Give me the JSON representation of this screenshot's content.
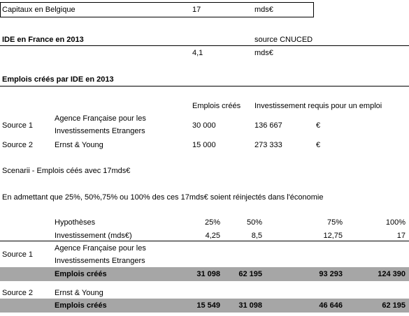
{
  "capitaux": {
    "label": "Capitaux en Belgique",
    "value": "17",
    "unit": "mds€"
  },
  "ide_france": {
    "title": "IDE en France en 2013",
    "source": "source CNUCED",
    "value": "4,1",
    "unit": "mds€"
  },
  "emplois_ide": {
    "title": "Emplois créés par IDE en 2013",
    "col_emplois": "Emplois créés",
    "col_invest": "Investissement requis pour un emploi",
    "rows": [
      {
        "source": "Source 1",
        "org_line1": "Agence Française pour les",
        "org_line2": "Investissements Etrangers",
        "emplois": "30 000",
        "invest": "136 667",
        "currency": "€"
      },
      {
        "source": "Source 2",
        "org_line1": "Ernst & Young",
        "org_line2": "",
        "emplois": "15 000",
        "invest": "273 333",
        "currency": "€"
      }
    ]
  },
  "scenarii": {
    "title": "Scenarii - Emplois céés avec 17mds€",
    "note": "En admettant que 25%, 50%,75% ou 100% des ces 17mds€ soient réinjectés dans l'économie",
    "hyp_label": "Hypothèses",
    "hyp_values": [
      "25%",
      "50%",
      "75%",
      "100%"
    ],
    "inv_label": "Investissement (mds€)",
    "inv_values": [
      "4,25",
      "8,5",
      "12,75",
      "17"
    ],
    "src1": {
      "source": "Source 1",
      "org_line1": "Agence Française pour les",
      "org_line2": "Investissements Etrangers",
      "label": "Emplois créés",
      "values": [
        "31 098",
        "62 195",
        "93 293",
        "124 390"
      ]
    },
    "src2": {
      "source": "Source 2",
      "org": "Ernst & Young",
      "label": "Emplois créés",
      "values": [
        "15 549",
        "31 098",
        "46 646",
        "62 195"
      ]
    }
  }
}
